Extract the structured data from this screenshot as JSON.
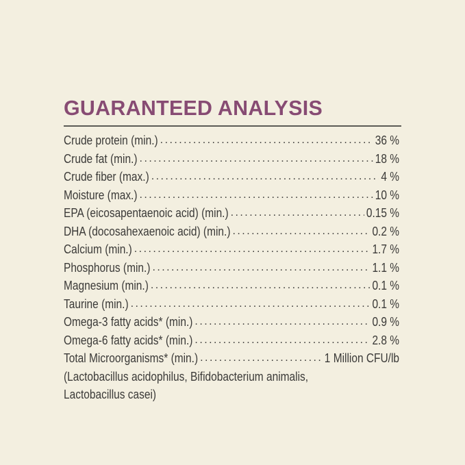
{
  "title": "GUARANTEED ANALYSIS",
  "colors": {
    "title": "#874b73",
    "background": "#f3efe0",
    "text": "#3b3a38"
  },
  "rows": [
    {
      "label": "Crude protein (min.)",
      "value": "36 %"
    },
    {
      "label": "Crude fat (min.)",
      "value": "18 %"
    },
    {
      "label": "Crude fiber (max.)",
      "value": "4 %"
    },
    {
      "label": "Moisture (max.)",
      "value": "10 %"
    },
    {
      "label": "EPA (eicosapentaenoic acid) (min.)",
      "value": "0.15 %"
    },
    {
      "label": "DHA (docosahexaenoic acid) (min.)",
      "value": "0.2 %"
    },
    {
      "label": "Calcium (min.)",
      "value": "1.7 %"
    },
    {
      "label": "Phosphorus (min.)",
      "value": "1.1 %"
    },
    {
      "label": "Magnesium (min.)",
      "value": "0.1 %"
    },
    {
      "label": "Taurine (min.)",
      "value": "0.1 %"
    },
    {
      "label": "Omega-3 fatty acids* (min.)",
      "value": "0.9 %"
    },
    {
      "label": "Omega-6 fatty acids* (min.)",
      "value": "2.8 %"
    },
    {
      "label": "Total Microorganisms* (min.)",
      "value": "1 Million CFU/lb"
    }
  ],
  "note_lines": [
    "(Lactobacillus acidophilus, Bifidobacterium animalis,",
    "Lactobacillus casei)"
  ]
}
